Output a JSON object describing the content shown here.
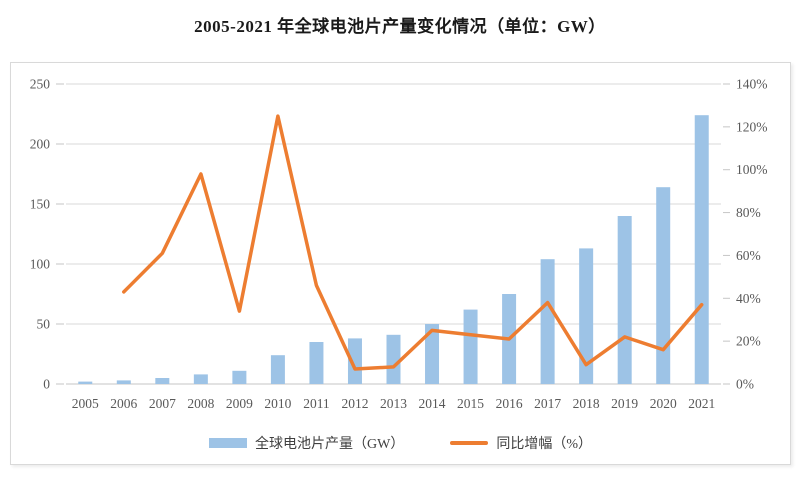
{
  "page": {
    "title": "2005-2021 年全球电池片产量变化情况（单位：GW）"
  },
  "chart_data": {
    "type": "bar",
    "subtype": "combo-bar-line-dual-axis",
    "title": "2005-2021 年全球电池片产量变化情况（单位：GW）",
    "categories": [
      "2005",
      "2006",
      "2007",
      "2008",
      "2009",
      "2010",
      "2011",
      "2012",
      "2013",
      "2014",
      "2015",
      "2016",
      "2017",
      "2018",
      "2019",
      "2020",
      "2021"
    ],
    "series": [
      {
        "name": "全球电池片产量（GW）",
        "type": "bar",
        "axis": "left",
        "unit": "GW",
        "values": [
          2,
          3,
          5,
          8,
          11,
          24,
          35,
          38,
          41,
          50,
          62,
          75,
          104,
          113,
          140,
          164,
          224
        ]
      },
      {
        "name": "同比增幅（%）",
        "type": "line",
        "axis": "right",
        "unit": "%",
        "values": [
          null,
          43,
          61,
          98,
          34,
          125,
          46,
          7,
          8,
          25,
          23,
          21,
          38,
          9,
          22,
          16,
          37
        ]
      }
    ],
    "left_axis": {
      "min": 0,
      "max": 250,
      "tick_interval": 50,
      "tick_labels": [
        "0",
        "50",
        "100",
        "150",
        "200",
        "250"
      ]
    },
    "right_axis": {
      "min": 0,
      "max": 140,
      "tick_interval": 20,
      "tick_labels": [
        "0%",
        "20%",
        "40%",
        "60%",
        "80%",
        "100%",
        "120%",
        "140%"
      ]
    },
    "grid": "horizontal gridlines aligned to left axis ticks",
    "legend_position": "bottom"
  },
  "legend": [
    {
      "label": "全球电池片产量（GW）",
      "swatch": "bar"
    },
    {
      "label": "同比增幅（%）",
      "swatch": "line"
    }
  ],
  "colors": {
    "bar": "#9DC3E6",
    "line": "#ED7D31",
    "gridline": "#D9D9D9",
    "axis_line": "#C6C6C6",
    "axis_text": "#595959",
    "title_text": "#1a1a1a",
    "frame_border": "#D9D9D9",
    "background": "#FFFFFF"
  }
}
